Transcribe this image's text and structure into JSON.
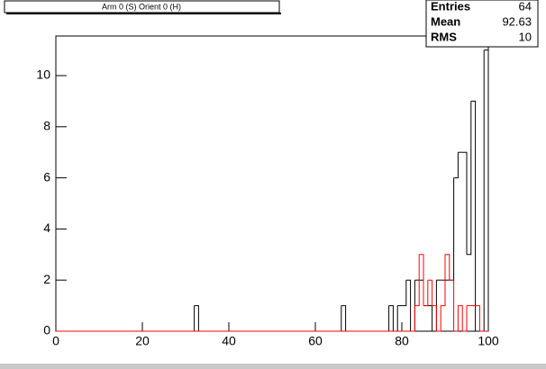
{
  "chart_data": {
    "type": "histogram",
    "title": "Arm 0 (S) Orient 0 (H)",
    "bins": [
      0,
      32,
      33,
      66,
      67,
      77,
      78,
      79,
      80,
      81,
      82,
      83,
      84,
      85,
      86,
      87,
      88,
      89,
      90,
      91,
      92,
      93,
      94,
      95,
      96,
      97,
      98,
      99,
      100
    ],
    "series": [
      {
        "color": "#000000",
        "values": [
          0,
          1,
          0,
          1,
          0,
          1,
          0,
          1,
          1,
          2,
          0,
          2,
          2,
          1,
          1,
          0,
          2,
          2,
          2,
          2,
          6,
          7,
          7,
          3,
          9,
          0,
          0,
          11
        ]
      },
      {
        "color": "#ff0000",
        "values": [
          0,
          0,
          0,
          0,
          0,
          0,
          0,
          0,
          0,
          0,
          0,
          1,
          3,
          1,
          2,
          1,
          0,
          1,
          3,
          2,
          0,
          1,
          0,
          1,
          1,
          1,
          0,
          0
        ]
      }
    ],
    "xlim": [
      0,
      100
    ],
    "ylim": [
      0,
      11.55
    ],
    "xticks": [
      0,
      20,
      40,
      60,
      80,
      100
    ],
    "yticks": [
      0,
      2,
      4,
      6,
      8,
      10
    ],
    "stats": [
      {
        "label": "Entries",
        "value": 64
      },
      {
        "label": "Mean",
        "value": 92.63
      },
      {
        "label": "RMS",
        "value": 10
      }
    ]
  }
}
